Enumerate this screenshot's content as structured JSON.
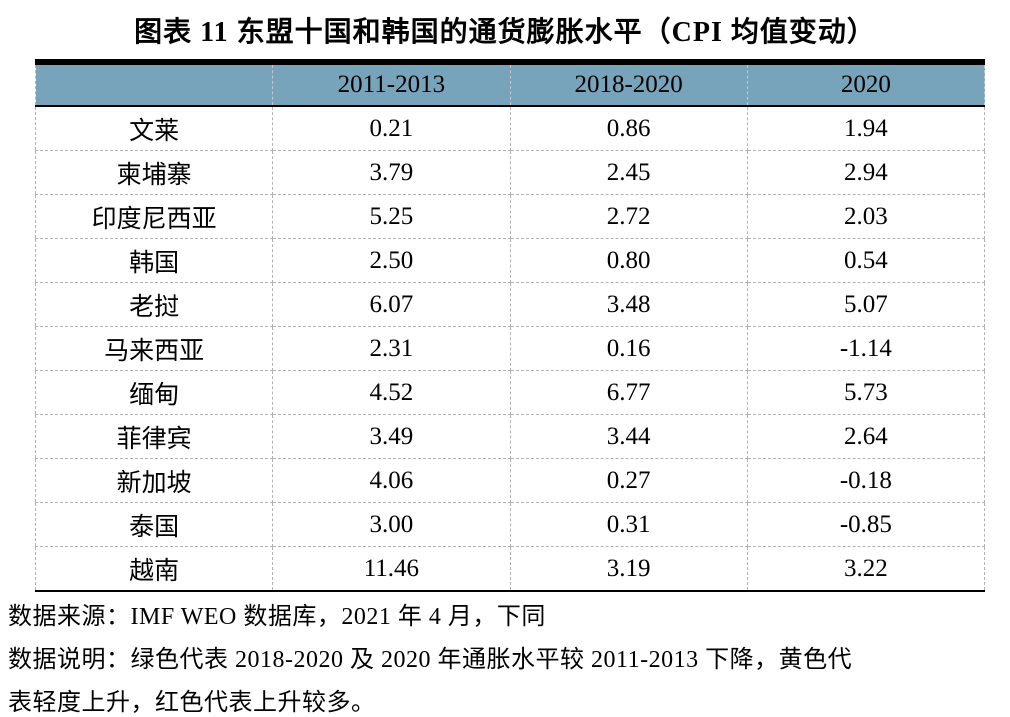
{
  "title": "图表 11 东盟十国和韩国的通货膨胀水平（CPI 均值变动）",
  "table": {
    "columns": [
      "",
      "2011-2013",
      "2018-2020",
      "2020"
    ],
    "rows": [
      {
        "country": "文莱",
        "values": [
          "0.21",
          "0.86",
          "1.94"
        ]
      },
      {
        "country": "柬埔寨",
        "values": [
          "3.79",
          "2.45",
          "2.94"
        ]
      },
      {
        "country": "印度尼西亚",
        "values": [
          "5.25",
          "2.72",
          "2.03"
        ]
      },
      {
        "country": "韩国",
        "values": [
          "2.50",
          "0.80",
          "0.54"
        ]
      },
      {
        "country": "老挝",
        "values": [
          "6.07",
          "3.48",
          "5.07"
        ]
      },
      {
        "country": "马来西亚",
        "values": [
          "2.31",
          "0.16",
          "-1.14"
        ]
      },
      {
        "country": "缅甸",
        "values": [
          "4.52",
          "6.77",
          "5.73"
        ]
      },
      {
        "country": "菲律宾",
        "values": [
          "3.49",
          "3.44",
          "2.64"
        ]
      },
      {
        "country": "新加坡",
        "values": [
          "4.06",
          "0.27",
          "-0.18"
        ]
      },
      {
        "country": "泰国",
        "values": [
          "3.00",
          "0.31",
          "-0.85"
        ]
      },
      {
        "country": "越南",
        "values": [
          "11.46",
          "3.19",
          "3.22"
        ]
      }
    ]
  },
  "footer": {
    "source": "数据来源：IMF WEO 数据库，2021 年 4 月，下同",
    "note_line1": "数据说明：绿色代表 2018-2020 及 2020 年通胀水平较 2011-2013 下降，黄色代",
    "note_line2": "表轻度上升，红色代表上升较多。"
  },
  "colors": {
    "header_bg": "#77A3BB",
    "rule_dark": "#000000",
    "grid_dashed": "#b3b3b3"
  },
  "chart_data": {
    "type": "table",
    "title": "图表 11 东盟十国和韩国的通货膨胀水平（CPI 均值变动）",
    "categories": [
      "文莱",
      "柬埔寨",
      "印度尼西亚",
      "韩国",
      "老挝",
      "马来西亚",
      "缅甸",
      "菲律宾",
      "新加坡",
      "泰国",
      "越南"
    ],
    "series": [
      {
        "name": "2011-2013",
        "values": [
          0.21,
          3.79,
          5.25,
          2.5,
          6.07,
          2.31,
          4.52,
          3.49,
          4.06,
          3.0,
          11.46
        ]
      },
      {
        "name": "2018-2020",
        "values": [
          0.86,
          2.45,
          2.72,
          0.8,
          3.48,
          0.16,
          6.77,
          3.44,
          0.27,
          0.31,
          3.19
        ]
      },
      {
        "name": "2020",
        "values": [
          1.94,
          2.94,
          2.03,
          0.54,
          5.07,
          -1.14,
          5.73,
          2.64,
          -0.18,
          -0.85,
          3.22
        ]
      }
    ]
  }
}
